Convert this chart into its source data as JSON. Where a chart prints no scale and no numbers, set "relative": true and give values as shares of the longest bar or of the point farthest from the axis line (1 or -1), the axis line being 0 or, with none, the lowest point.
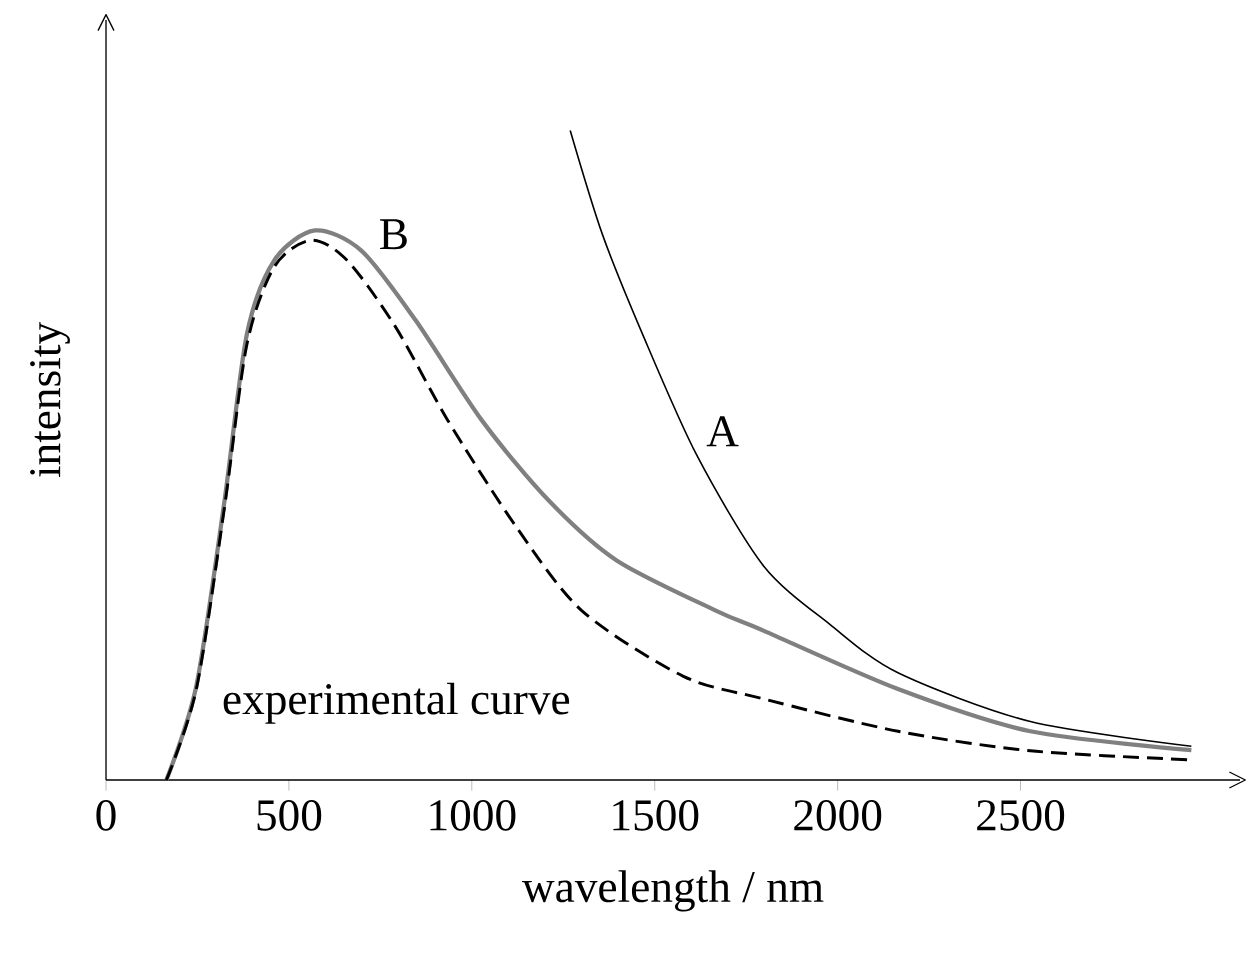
{
  "chart_data": {
    "type": "line",
    "relative": true,
    "xlabel": "wavelength / nm",
    "ylabel": "intensity",
    "xlim": [
      0,
      3100
    ],
    "xticks": [
      0,
      500,
      1000,
      1500,
      2000,
      2500
    ],
    "legend": false,
    "grid": false,
    "tick_labels": "x",
    "series": [
      {
        "name": "A",
        "color": "#000000",
        "line_style": "solid",
        "x": [
          1269,
          1357,
          1467,
          1615,
          1797,
          1978,
          2165,
          2527,
          2967
        ],
        "values": [
          1.0,
          0.84,
          0.686,
          0.5,
          0.33,
          0.24,
          0.165,
          0.09,
          0.052
        ]
      },
      {
        "name": "B",
        "color": "#808080",
        "line_style": "solid",
        "x": [
          165,
          247,
          324,
          385,
          460,
          571,
          698,
          846,
          1027,
          1209,
          1396,
          1670,
          1797,
          2165,
          2527,
          2967
        ],
        "values": [
          0,
          0.145,
          0.43,
          0.686,
          0.8,
          0.846,
          0.815,
          0.708,
          0.554,
          0.431,
          0.338,
          0.26,
          0.23,
          0.14,
          0.075,
          0.046
        ]
      },
      {
        "name": "experimental curve",
        "color": "#000000",
        "line_style": "dashed",
        "x": [
          165,
          247,
          324,
          385,
          460,
          560,
          659,
          791,
          934,
          1121,
          1302,
          1577,
          1797,
          2165,
          2527,
          2967
        ],
        "values": [
          0,
          0.14,
          0.42,
          0.67,
          0.79,
          0.831,
          0.8,
          0.698,
          0.554,
          0.39,
          0.26,
          0.16,
          0.125,
          0.075,
          0.045,
          0.031
        ]
      }
    ]
  }
}
